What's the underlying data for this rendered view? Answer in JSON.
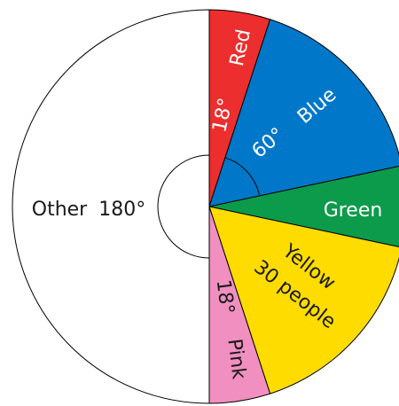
{
  "chart_data": {
    "type": "pie",
    "slices": [
      {
        "name": "Red",
        "angle_label": "18°",
        "degrees": 18,
        "color": "#ec2e2e",
        "text_color": "#ffffff"
      },
      {
        "name": "Blue",
        "angle_label": "60°",
        "degrees": 60,
        "color": "#0077c8",
        "text_color": "#ffffff"
      },
      {
        "name": "Green",
        "degrees": 24,
        "color": "#0c9b4b",
        "text_color": "#ffffff"
      },
      {
        "name": "Yellow",
        "value_label": "30 people",
        "degrees": 60,
        "color": "#ffdc00",
        "text_color": "#1a1a1a"
      },
      {
        "name": "Pink",
        "angle_label": "18°",
        "degrees": 18,
        "color": "#f08fc0",
        "text_color": "#1a1a1a"
      },
      {
        "name": "Other",
        "angle_label": "180°",
        "degrees": 180,
        "color": "#ffffff",
        "text_color": "#1a1a1a"
      }
    ],
    "start_angle_deg": 0,
    "direction": "clockwise",
    "angle_arcs": [
      "Blue",
      "Other"
    ],
    "legend": "none"
  }
}
